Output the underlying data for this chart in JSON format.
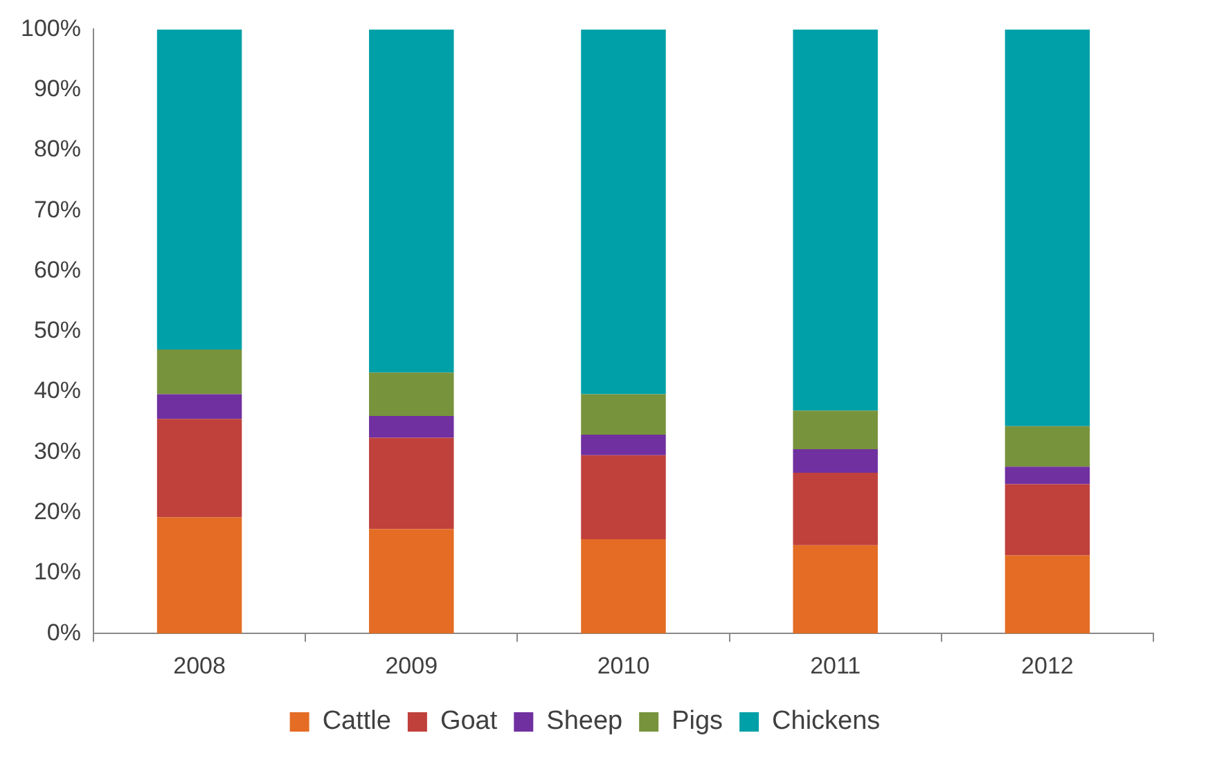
{
  "chart_data": {
    "type": "bar",
    "stacked": true,
    "categories": [
      "2008",
      "2009",
      "2010",
      "2011",
      "2012"
    ],
    "series": [
      {
        "name": "Cattle",
        "color": "#e46c24",
        "values": [
          19.2,
          17.3,
          15.6,
          14.6,
          12.9
        ]
      },
      {
        "name": "Goat",
        "color": "#c0403c",
        "values": [
          16.3,
          15.1,
          13.9,
          12.0,
          11.8
        ]
      },
      {
        "name": "Sheep",
        "color": "#7030a0",
        "values": [
          4.1,
          3.6,
          3.4,
          3.9,
          2.9
        ]
      },
      {
        "name": "Pigs",
        "color": "#77933c",
        "values": [
          7.4,
          7.2,
          6.7,
          6.4,
          6.7
        ]
      },
      {
        "name": "Chickens",
        "color": "#00a0a8",
        "values": [
          53.0,
          56.8,
          60.4,
          63.1,
          65.7
        ]
      }
    ],
    "ylim": [
      0,
      100
    ],
    "yticks": [
      {
        "value": 0,
        "label": "0%"
      },
      {
        "value": 10,
        "label": "10%"
      },
      {
        "value": 20,
        "label": "20%"
      },
      {
        "value": 30,
        "label": "30%"
      },
      {
        "value": 40,
        "label": "40%"
      },
      {
        "value": 50,
        "label": "50%"
      },
      {
        "value": 60,
        "label": "60%"
      },
      {
        "value": 70,
        "label": "70%"
      },
      {
        "value": 80,
        "label": "80%"
      },
      {
        "value": 90,
        "label": "90%"
      },
      {
        "value": 100,
        "label": "100%"
      }
    ],
    "grid": false,
    "legend": "bottom"
  }
}
